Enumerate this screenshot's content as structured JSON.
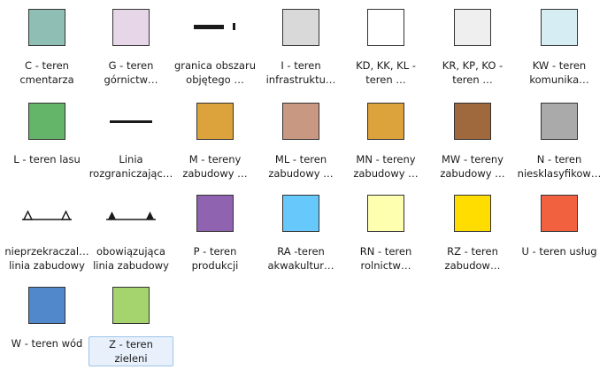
{
  "legend": [
    {
      "label": "C - teren\ncmentarza",
      "color": "#8fbfb4",
      "kind": "swatch",
      "icon": "swatch-icon"
    },
    {
      "label": "G - teren\ngórnictw…",
      "color": "#e7d5e8",
      "kind": "swatch",
      "icon": "swatch-icon"
    },
    {
      "label": "granica obszaru\nobjętego …",
      "color": "#1a1a1a",
      "kind": "boundary",
      "icon": "dashed-line-icon"
    },
    {
      "label": "I - teren\ninfrastruktu…",
      "color": "#d9d9d9",
      "kind": "swatch",
      "icon": "swatch-icon"
    },
    {
      "label": "KD, KK, KL -\nteren …",
      "color": "#ffffff",
      "kind": "swatch",
      "icon": "swatch-icon"
    },
    {
      "label": "KR, KP, KO -\nteren …",
      "color": "#efefef",
      "kind": "swatch",
      "icon": "swatch-icon"
    },
    {
      "label": "KW - teren\nkomunika…",
      "color": "#d5edf3",
      "kind": "swatch",
      "icon": "swatch-icon"
    },
    {
      "label": "L - teren lasu",
      "color": "#64b46a",
      "kind": "swatch",
      "icon": "swatch-icon"
    },
    {
      "label": "Linia\nrozgraniczając…",
      "color": "#1a1a1a",
      "kind": "line",
      "icon": "solid-line-icon"
    },
    {
      "label": "M - tereny\nzabudowy …",
      "color": "#dca23b",
      "kind": "swatch",
      "icon": "swatch-icon"
    },
    {
      "label": "ML - teren\nzabudowy …",
      "color": "#c99882",
      "kind": "swatch",
      "icon": "swatch-icon"
    },
    {
      "label": "MN - tereny\nzabudowy …",
      "color": "#dca23b",
      "kind": "swatch",
      "icon": "swatch-icon"
    },
    {
      "label": "MW - tereny\nzabudowy …",
      "color": "#a0683d",
      "kind": "swatch",
      "icon": "swatch-icon"
    },
    {
      "label": "N - teren\nniesklasyfikow…",
      "color": "#aaaaaa",
      "kind": "swatch",
      "icon": "swatch-icon"
    },
    {
      "label": "nieprzekraczal…\nlinia zabudowy",
      "color": "#1a1a1a",
      "kind": "open-tri",
      "icon": "open-triangle-line-icon"
    },
    {
      "label": "obowiązująca\nlinia zabudowy",
      "color": "#1a1a1a",
      "kind": "filled-tri",
      "icon": "filled-triangle-line-icon"
    },
    {
      "label": "P - teren\nprodukcji",
      "color": "#8f63b0",
      "kind": "swatch",
      "icon": "swatch-icon"
    },
    {
      "label": "RA -teren\nakwakultur…",
      "color": "#66c8fb",
      "kind": "swatch",
      "icon": "swatch-icon"
    },
    {
      "label": "RN - teren\nrolnictw…",
      "color": "#ffffb0",
      "kind": "swatch",
      "icon": "swatch-icon"
    },
    {
      "label": "RZ - teren\nzabudow…",
      "color": "#ffdd00",
      "kind": "swatch",
      "icon": "swatch-icon"
    },
    {
      "label": "U - teren usług",
      "color": "#f1603f",
      "kind": "swatch",
      "icon": "swatch-icon"
    },
    {
      "label": "W - teren wód",
      "color": "#5188cc",
      "kind": "swatch",
      "icon": "swatch-icon"
    },
    {
      "label": "Z - teren zieleni",
      "color": "#a5d46f",
      "kind": "swatch",
      "icon": "swatch-icon",
      "selected": true
    }
  ]
}
